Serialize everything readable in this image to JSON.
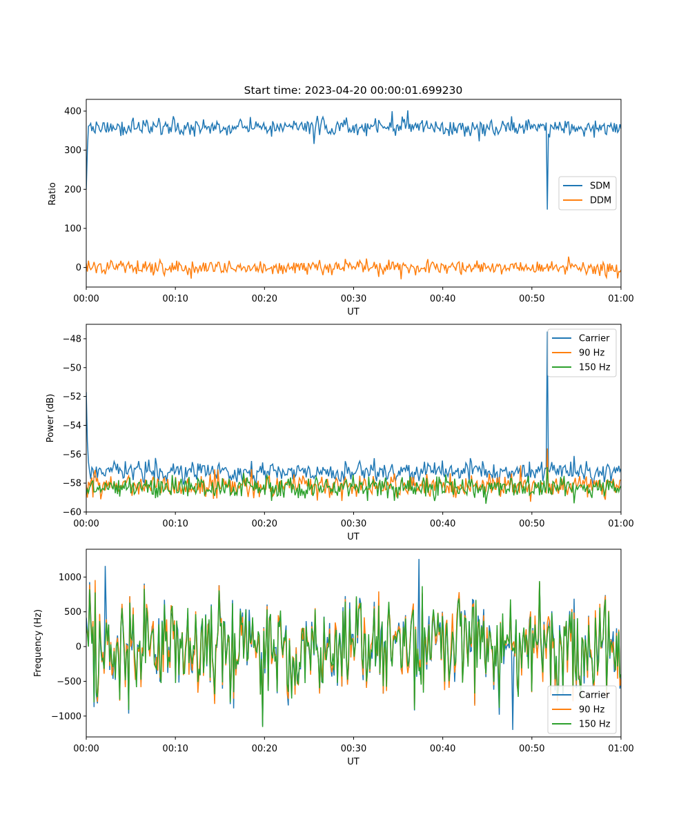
{
  "chart_data": [
    {
      "type": "line",
      "title": "Start time: 2023-04-20 00:00:01.699230",
      "xlabel": "UT",
      "ylabel": "Ratio",
      "xlim": [
        0,
        60
      ],
      "ylim": [
        -50,
        430
      ],
      "xticks": [
        "00:00",
        "00:10",
        "00:20",
        "00:30",
        "00:40",
        "00:50",
        "01:00"
      ],
      "yticks": [
        0,
        100,
        200,
        300,
        400
      ],
      "legend": "center-right",
      "grid": false,
      "series": [
        {
          "name": "SDM",
          "color": "#1f77b4",
          "baseline": 358,
          "noise": 12,
          "spikes": [
            {
              "x": 0.1,
              "y": 200
            },
            {
              "x": 51.7,
              "y": 148
            },
            {
              "x": 36.1,
              "y": 402
            }
          ]
        },
        {
          "name": "DDM",
          "color": "#ff7f0e",
          "baseline": 0,
          "noise": 9,
          "spikes": [
            {
              "x": 35.3,
              "y": -30
            },
            {
              "x": 59.6,
              "y": -28
            }
          ]
        }
      ]
    },
    {
      "type": "line",
      "title": "",
      "xlabel": "UT",
      "ylabel": "Power (dB)",
      "xlim": [
        0,
        60
      ],
      "ylim": [
        -60,
        -47
      ],
      "xticks": [
        "00:00",
        "00:10",
        "00:20",
        "00:30",
        "00:40",
        "00:50",
        "01:00"
      ],
      "yticks": [
        -60,
        -58,
        -56,
        -54,
        -52,
        -50,
        -48
      ],
      "legend": "top-right",
      "grid": false,
      "series": [
        {
          "name": "Carrier",
          "color": "#1f77b4",
          "baseline": -57.2,
          "noise": 0.35,
          "spikes": [
            {
              "x": 0.15,
              "y": -51.7
            },
            {
              "x": 51.7,
              "y": -47.5
            }
          ]
        },
        {
          "name": "90 Hz",
          "color": "#ff7f0e",
          "baseline": -58.2,
          "noise": 0.4,
          "spikes": [
            {
              "x": 51.7,
              "y": -55.6
            }
          ]
        },
        {
          "name": "150 Hz",
          "color": "#2ca02c",
          "baseline": -58.3,
          "noise": 0.4,
          "spikes": [
            {
              "x": 51.7,
              "y": -56.9
            }
          ]
        }
      ]
    },
    {
      "type": "line",
      "title": "",
      "xlabel": "UT",
      "ylabel": "Frequency (Hz)",
      "xlim": [
        0,
        60
      ],
      "ylim": [
        -1300,
        1400
      ],
      "xticks": [
        "00:00",
        "00:10",
        "00:20",
        "00:30",
        "00:40",
        "00:50",
        "01:00"
      ],
      "yticks": [
        -1000,
        -500,
        0,
        500,
        1000
      ],
      "legend": "bottom-right",
      "grid": false,
      "series": [
        {
          "name": "Carrier",
          "color": "#1f77b4",
          "baseline": 0,
          "noise": 420,
          "spikes": [
            {
              "x": 37.3,
              "y": 1260
            },
            {
              "x": 47.8,
              "y": -1200
            },
            {
              "x": 2.1,
              "y": 1160
            }
          ]
        },
        {
          "name": "90 Hz",
          "color": "#ff7f0e",
          "baseline": 0,
          "noise": 410,
          "spikes": []
        },
        {
          "name": "150 Hz",
          "color": "#2ca02c",
          "baseline": 0,
          "noise": 400,
          "spikes": []
        }
      ]
    }
  ]
}
